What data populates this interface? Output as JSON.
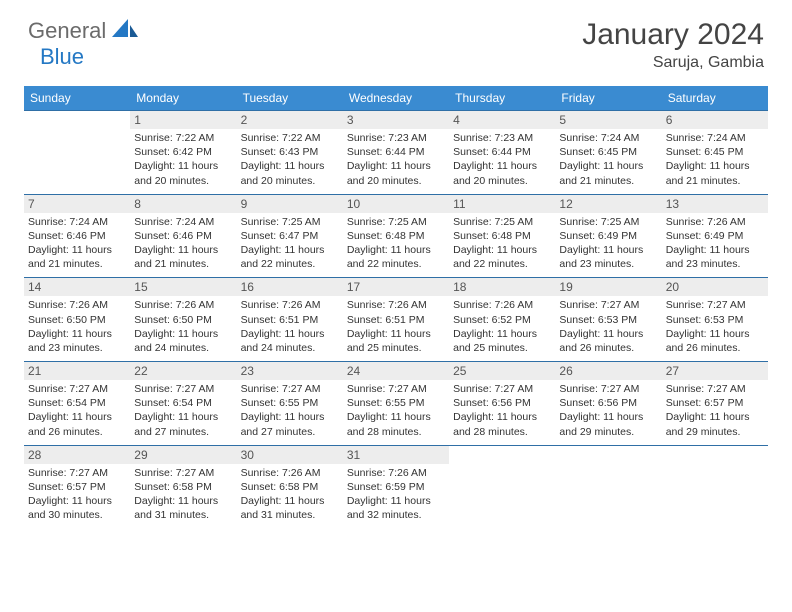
{
  "logo": {
    "general": "General",
    "blue": "Blue"
  },
  "title": "January 2024",
  "location": "Saruja, Gambia",
  "accent_color": "#3a8bd1",
  "rule_color": "#2f6fa6",
  "daynum_bg": "#ededed",
  "weekdays": [
    "Sunday",
    "Monday",
    "Tuesday",
    "Wednesday",
    "Thursday",
    "Friday",
    "Saturday"
  ],
  "weeks": [
    [
      null,
      {
        "n": "1",
        "sr": "7:22 AM",
        "ss": "6:42 PM",
        "dl": "11 hours and 20 minutes."
      },
      {
        "n": "2",
        "sr": "7:22 AM",
        "ss": "6:43 PM",
        "dl": "11 hours and 20 minutes."
      },
      {
        "n": "3",
        "sr": "7:23 AM",
        "ss": "6:44 PM",
        "dl": "11 hours and 20 minutes."
      },
      {
        "n": "4",
        "sr": "7:23 AM",
        "ss": "6:44 PM",
        "dl": "11 hours and 20 minutes."
      },
      {
        "n": "5",
        "sr": "7:24 AM",
        "ss": "6:45 PM",
        "dl": "11 hours and 21 minutes."
      },
      {
        "n": "6",
        "sr": "7:24 AM",
        "ss": "6:45 PM",
        "dl": "11 hours and 21 minutes."
      }
    ],
    [
      {
        "n": "7",
        "sr": "7:24 AM",
        "ss": "6:46 PM",
        "dl": "11 hours and 21 minutes."
      },
      {
        "n": "8",
        "sr": "7:24 AM",
        "ss": "6:46 PM",
        "dl": "11 hours and 21 minutes."
      },
      {
        "n": "9",
        "sr": "7:25 AM",
        "ss": "6:47 PM",
        "dl": "11 hours and 22 minutes."
      },
      {
        "n": "10",
        "sr": "7:25 AM",
        "ss": "6:48 PM",
        "dl": "11 hours and 22 minutes."
      },
      {
        "n": "11",
        "sr": "7:25 AM",
        "ss": "6:48 PM",
        "dl": "11 hours and 22 minutes."
      },
      {
        "n": "12",
        "sr": "7:25 AM",
        "ss": "6:49 PM",
        "dl": "11 hours and 23 minutes."
      },
      {
        "n": "13",
        "sr": "7:26 AM",
        "ss": "6:49 PM",
        "dl": "11 hours and 23 minutes."
      }
    ],
    [
      {
        "n": "14",
        "sr": "7:26 AM",
        "ss": "6:50 PM",
        "dl": "11 hours and 23 minutes."
      },
      {
        "n": "15",
        "sr": "7:26 AM",
        "ss": "6:50 PM",
        "dl": "11 hours and 24 minutes."
      },
      {
        "n": "16",
        "sr": "7:26 AM",
        "ss": "6:51 PM",
        "dl": "11 hours and 24 minutes."
      },
      {
        "n": "17",
        "sr": "7:26 AM",
        "ss": "6:51 PM",
        "dl": "11 hours and 25 minutes."
      },
      {
        "n": "18",
        "sr": "7:26 AM",
        "ss": "6:52 PM",
        "dl": "11 hours and 25 minutes."
      },
      {
        "n": "19",
        "sr": "7:27 AM",
        "ss": "6:53 PM",
        "dl": "11 hours and 26 minutes."
      },
      {
        "n": "20",
        "sr": "7:27 AM",
        "ss": "6:53 PM",
        "dl": "11 hours and 26 minutes."
      }
    ],
    [
      {
        "n": "21",
        "sr": "7:27 AM",
        "ss": "6:54 PM",
        "dl": "11 hours and 26 minutes."
      },
      {
        "n": "22",
        "sr": "7:27 AM",
        "ss": "6:54 PM",
        "dl": "11 hours and 27 minutes."
      },
      {
        "n": "23",
        "sr": "7:27 AM",
        "ss": "6:55 PM",
        "dl": "11 hours and 27 minutes."
      },
      {
        "n": "24",
        "sr": "7:27 AM",
        "ss": "6:55 PM",
        "dl": "11 hours and 28 minutes."
      },
      {
        "n": "25",
        "sr": "7:27 AM",
        "ss": "6:56 PM",
        "dl": "11 hours and 28 minutes."
      },
      {
        "n": "26",
        "sr": "7:27 AM",
        "ss": "6:56 PM",
        "dl": "11 hours and 29 minutes."
      },
      {
        "n": "27",
        "sr": "7:27 AM",
        "ss": "6:57 PM",
        "dl": "11 hours and 29 minutes."
      }
    ],
    [
      {
        "n": "28",
        "sr": "7:27 AM",
        "ss": "6:57 PM",
        "dl": "11 hours and 30 minutes."
      },
      {
        "n": "29",
        "sr": "7:27 AM",
        "ss": "6:58 PM",
        "dl": "11 hours and 31 minutes."
      },
      {
        "n": "30",
        "sr": "7:26 AM",
        "ss": "6:58 PM",
        "dl": "11 hours and 31 minutes."
      },
      {
        "n": "31",
        "sr": "7:26 AM",
        "ss": "6:59 PM",
        "dl": "11 hours and 32 minutes."
      },
      null,
      null,
      null
    ]
  ],
  "labels": {
    "sunrise": "Sunrise:",
    "sunset": "Sunset:",
    "daylight": "Daylight:"
  }
}
